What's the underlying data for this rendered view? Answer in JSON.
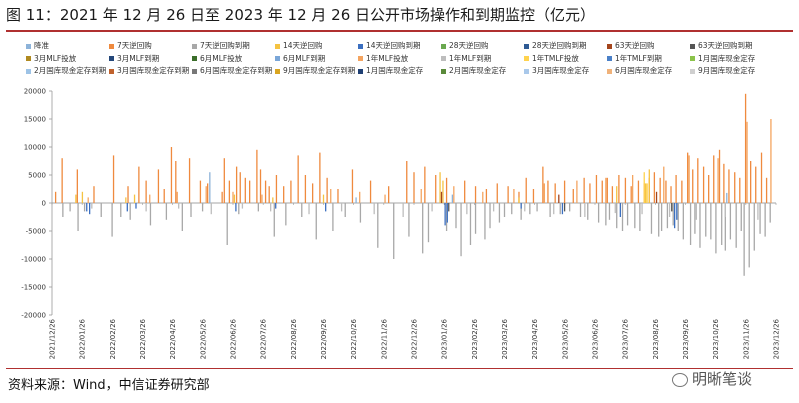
{
  "figure": {
    "title": "图 11：2021 年 12 月 26 日至 2023 年 12 月 26 日公开市场操作和到期监控（亿元）",
    "source": "资料来源：Wind，中信证券研究部",
    "watermark": "明晰笔谈"
  },
  "chart_data": {
    "type": "bar",
    "stacked": true,
    "ylim": [
      -20000,
      20000
    ],
    "yticks": [
      -20000,
      -15000,
      -10000,
      -5000,
      0,
      5000,
      10000,
      15000,
      20000
    ],
    "x_tick_labels": [
      "2021/12/26",
      "2022/01/26",
      "2022/02/26",
      "2022/03/26",
      "2022/04/26",
      "2022/05/26",
      "2022/06/26",
      "2022/07/26",
      "2022/08/26",
      "2022/09/26",
      "2022/10/26",
      "2022/11/26",
      "2022/12/26",
      "2023/01/26",
      "2023/02/26",
      "2023/03/26",
      "2023/04/26",
      "2023/05/26",
      "2023/06/26",
      "2023/07/26",
      "2023/08/26",
      "2023/09/26",
      "2023/10/26",
      "2023/11/26",
      "2023/12/26"
    ],
    "legend_position": "top",
    "grid": false,
    "legend": [
      {
        "name": "降准",
        "color": "#8db3d9"
      },
      {
        "name": "7天逆回购",
        "color": "#ef8a3e"
      },
      {
        "name": "7天逆回购到期",
        "color": "#a8a8a8"
      },
      {
        "name": "14天逆回购",
        "color": "#f5c342"
      },
      {
        "name": "14天逆回购到期",
        "color": "#3b6fc0"
      },
      {
        "name": "28天逆回购",
        "color": "#6aa84f"
      },
      {
        "name": "28天逆回购到期",
        "color": "#2e5a94"
      },
      {
        "name": "63天逆回购",
        "color": "#a4451c"
      },
      {
        "name": "63天逆回购到期",
        "color": "#555555"
      },
      {
        "name": "3月MLF投放",
        "color": "#b08a20"
      },
      {
        "name": "3月MLF到期",
        "color": "#24477a"
      },
      {
        "name": "6月MLF投放",
        "color": "#3b6e2a"
      },
      {
        "name": "6月MLF到期",
        "color": "#7aa6d8"
      },
      {
        "name": "1年MLF投放",
        "color": "#f4a460"
      },
      {
        "name": "1年MLF到期",
        "color": "#bdbdbd"
      },
      {
        "name": "1年TMLF投放",
        "color": "#ffd34e"
      },
      {
        "name": "1年TMLF到期",
        "color": "#4a80c8"
      },
      {
        "name": "1月国库现金定存",
        "color": "#8bc34a"
      },
      {
        "name": "2月国库现金定存到期",
        "color": "#9dc3e6"
      },
      {
        "name": "3月国库现金定存到期",
        "color": "#c0622d"
      },
      {
        "name": "6月国库现金定存到期",
        "color": "#777777"
      },
      {
        "name": "9月国库现金定存到期",
        "color": "#d9a520"
      },
      {
        "name": "1月国库现金定存",
        "color": "#1f3f73"
      },
      {
        "name": "2月国库现金定存",
        "color": "#5a8a3a"
      },
      {
        "name": "3月国库现金定存",
        "color": "#a9c8ea"
      },
      {
        "name": "6月国库现金定存",
        "color": "#f0b27a"
      },
      {
        "name": "9月国库现金定存",
        "color": "#cfcfcf"
      }
    ],
    "series": [
      {
        "name": "7天逆回购",
        "color": "#ef8a3e",
        "sign": 1,
        "points": [
          [
            0.5,
            2000
          ],
          [
            1.4,
            8000
          ],
          [
            3.5,
            6000
          ],
          [
            5.8,
            3000
          ],
          [
            8.5,
            8500
          ],
          [
            10.5,
            3000
          ],
          [
            12.0,
            6500
          ],
          [
            13.0,
            4000
          ],
          [
            14.7,
            6000
          ],
          [
            15.5,
            2500
          ],
          [
            16.5,
            10000
          ],
          [
            17.1,
            7500
          ],
          [
            19.0,
            8000
          ],
          [
            20.5,
            4000
          ],
          [
            21.5,
            3500
          ],
          [
            23.5,
            2000
          ],
          [
            23.8,
            8000
          ],
          [
            24.5,
            4000
          ],
          [
            25.5,
            6500
          ],
          [
            26.0,
            5500
          ],
          [
            26.7,
            4500
          ],
          [
            27.3,
            4000
          ],
          [
            28.3,
            9500
          ],
          [
            28.8,
            6000
          ],
          [
            29.5,
            4000
          ],
          [
            30.0,
            3000
          ],
          [
            31.0,
            5000
          ],
          [
            32.0,
            3000
          ],
          [
            33.0,
            4000
          ],
          [
            34.0,
            8500
          ],
          [
            35.0,
            5000
          ],
          [
            36.0,
            3500
          ],
          [
            37.0,
            9000
          ],
          [
            38.0,
            4500
          ],
          [
            39.5,
            2500
          ],
          [
            41.5,
            6000
          ],
          [
            44.0,
            4000
          ],
          [
            46.5,
            3000
          ],
          [
            49.0,
            7500
          ],
          [
            50.0,
            5500
          ],
          [
            51.5,
            6500
          ],
          [
            53.0,
            5000
          ],
          [
            54.5,
            4500
          ],
          [
            57.0,
            4000
          ],
          [
            58.5,
            3000
          ],
          [
            60.0,
            2500
          ],
          [
            61.5,
            3500
          ],
          [
            63.0,
            3000
          ],
          [
            64.5,
            2000
          ],
          [
            65.5,
            4500
          ],
          [
            66.5,
            2500
          ],
          [
            67.8,
            6500
          ],
          [
            68.5,
            4000
          ],
          [
            69.5,
            3500
          ],
          [
            70.8,
            4000
          ],
          [
            72.0,
            2500
          ],
          [
            73.5,
            4500
          ],
          [
            74.3,
            3500
          ],
          [
            75.2,
            5000
          ],
          [
            76.0,
            4000
          ],
          [
            76.7,
            4500
          ],
          [
            77.4,
            3000
          ],
          [
            78.3,
            5000
          ],
          [
            79.2,
            4500
          ],
          [
            80.0,
            3000
          ],
          [
            81.0,
            4000
          ],
          [
            81.8,
            3500
          ],
          [
            82.5,
            4500
          ],
          [
            83.2,
            5500
          ],
          [
            84.0,
            4500
          ],
          [
            84.8,
            4000
          ],
          [
            85.5,
            3000
          ],
          [
            86.2,
            5000
          ],
          [
            87.0,
            4000
          ],
          [
            87.8,
            9000
          ],
          [
            88.5,
            6000
          ],
          [
            89.2,
            8000
          ],
          [
            90.0,
            6500
          ],
          [
            90.7,
            5000
          ],
          [
            91.4,
            8500
          ],
          [
            92.2,
            9500
          ],
          [
            92.8,
            7000
          ],
          [
            93.5,
            6000
          ],
          [
            94.3,
            5500
          ],
          [
            95.0,
            4500
          ],
          [
            95.8,
            19500
          ],
          [
            96.5,
            7500
          ],
          [
            97.2,
            6500
          ],
          [
            98.0,
            9000
          ],
          [
            98.7,
            4500
          ]
        ]
      },
      {
        "name": "1年MLF投放",
        "color": "#f4a460",
        "sign": 1,
        "points": [
          [
            5.0,
            1000
          ],
          [
            13.5,
            1500
          ],
          [
            17.3,
            2000
          ],
          [
            21.3,
            3000
          ],
          [
            25.0,
            2000
          ],
          [
            29.0,
            1500
          ],
          [
            38.5,
            2500
          ],
          [
            42.5,
            2000
          ],
          [
            46.0,
            1500
          ],
          [
            51.0,
            2500
          ],
          [
            55.5,
            3000
          ],
          [
            59.5,
            2000
          ],
          [
            63.8,
            2500
          ],
          [
            68.0,
            3500
          ],
          [
            72.5,
            4000
          ],
          [
            76.5,
            4500
          ],
          [
            80.2,
            5000
          ],
          [
            84.5,
            6500
          ],
          [
            88.0,
            8500
          ],
          [
            92.0,
            8000
          ],
          [
            96.0,
            14500
          ],
          [
            99.3,
            15000
          ]
        ]
      },
      {
        "name": "14天逆回购",
        "color": "#f5c342",
        "sign": 1,
        "points": [
          [
            3.3,
            1500
          ],
          [
            4.2,
            2000
          ],
          [
            10.2,
            1000
          ],
          [
            11.4,
            1500
          ],
          [
            25.2,
            1500
          ],
          [
            30.5,
            1000
          ],
          [
            37.5,
            1500
          ],
          [
            53.6,
            5500
          ],
          [
            54.0,
            4000
          ],
          [
            64.5,
            1000
          ],
          [
            78.0,
            3000
          ],
          [
            82.0,
            3500
          ],
          [
            82.5,
            6000
          ]
        ]
      },
      {
        "name": "63天逆回购",
        "color": "#a4451c",
        "sign": 1,
        "points": [
          [
            53.8,
            2000
          ],
          [
            70.0,
            1500
          ],
          [
            83.5,
            2000
          ]
        ]
      },
      {
        "name": "1年TMLF投放",
        "color": "#ffd34e",
        "sign": 1,
        "points": [
          [
            81.8,
            5500
          ],
          [
            82.2,
            3500
          ]
        ]
      },
      {
        "name": "降准",
        "color": "#8db3d9",
        "sign": 1,
        "points": [
          [
            21.8,
            5500
          ],
          [
            42.0,
            1000
          ],
          [
            55.3,
            1500
          ],
          [
            93.2,
            1800
          ]
        ]
      },
      {
        "name": "7天逆回购到期",
        "color": "#a8a8a8",
        "sign": -1,
        "points": [
          [
            1.5,
            -2500
          ],
          [
            2.5,
            -1500
          ],
          [
            3.6,
            -5000
          ],
          [
            4.5,
            -1500
          ],
          [
            6.8,
            -2500
          ],
          [
            8.3,
            -6000
          ],
          [
            9.5,
            -2500
          ],
          [
            10.8,
            -3000
          ],
          [
            13.6,
            -4000
          ],
          [
            15.8,
            -3000
          ],
          [
            18.0,
            -5000
          ],
          [
            19.2,
            -2500
          ],
          [
            20.8,
            -1500
          ],
          [
            24.2,
            -7500
          ],
          [
            25.8,
            -2000
          ],
          [
            28.5,
            -1500
          ],
          [
            30.7,
            -6000
          ],
          [
            32.3,
            -4000
          ],
          [
            34.5,
            -2500
          ],
          [
            36.5,
            -6500
          ],
          [
            38.8,
            -5000
          ],
          [
            40.5,
            -2500
          ],
          [
            42.6,
            -3500
          ],
          [
            45.0,
            -8000
          ],
          [
            47.2,
            -10000
          ],
          [
            49.3,
            -6000
          ],
          [
            51.2,
            -9000
          ],
          [
            52.0,
            -7000
          ],
          [
            54.5,
            -5000
          ],
          [
            55.8,
            -4500
          ],
          [
            56.5,
            -9500
          ],
          [
            57.8,
            -7500
          ],
          [
            58.5,
            -5500
          ],
          [
            59.8,
            -6500
          ],
          [
            60.5,
            -4500
          ],
          [
            61.8,
            -3500
          ],
          [
            62.5,
            -2500
          ],
          [
            63.5,
            -2000
          ],
          [
            64.8,
            -3000
          ],
          [
            66.0,
            -2000
          ],
          [
            67.0,
            -1500
          ],
          [
            68.8,
            -2500
          ],
          [
            70.2,
            -2000
          ],
          [
            71.5,
            -1500
          ],
          [
            73.0,
            -2500
          ],
          [
            74.0,
            -3000
          ],
          [
            75.5,
            -3500
          ],
          [
            76.5,
            -4000
          ],
          [
            77.0,
            -3000
          ],
          [
            78.0,
            -4500
          ],
          [
            78.8,
            -5000
          ],
          [
            79.5,
            -4000
          ],
          [
            80.5,
            -4500
          ],
          [
            81.2,
            -5000
          ],
          [
            82.8,
            -5500
          ],
          [
            83.8,
            -6000
          ],
          [
            84.2,
            -5000
          ],
          [
            85.0,
            -4500
          ],
          [
            85.8,
            -4000
          ],
          [
            86.5,
            -5000
          ],
          [
            87.2,
            -6500
          ],
          [
            88.2,
            -7500
          ],
          [
            88.8,
            -5500
          ],
          [
            89.5,
            -8000
          ],
          [
            90.3,
            -6000
          ],
          [
            91.0,
            -6500
          ],
          [
            91.7,
            -9000
          ],
          [
            92.5,
            -7500
          ],
          [
            93.0,
            -8500
          ],
          [
            93.7,
            -6500
          ],
          [
            94.5,
            -8000
          ],
          [
            95.2,
            -5000
          ],
          [
            95.6,
            -13000
          ],
          [
            96.3,
            -11500
          ],
          [
            97.0,
            -8500
          ],
          [
            97.8,
            -5500
          ],
          [
            98.5,
            -6000
          ],
          [
            99.2,
            -3500
          ]
        ]
      },
      {
        "name": "1年MLF到期",
        "color": "#bdbdbd",
        "sign": -1,
        "points": [
          [
            5.5,
            -1000
          ],
          [
            13.0,
            -1500
          ],
          [
            17.5,
            -1000
          ],
          [
            22.0,
            -2000
          ],
          [
            26.3,
            -1000
          ],
          [
            30.2,
            -1500
          ],
          [
            35.5,
            -2000
          ],
          [
            40.0,
            -1500
          ],
          [
            44.5,
            -2000
          ],
          [
            48.5,
            -2500
          ],
          [
            52.5,
            -1500
          ],
          [
            57.3,
            -2000
          ],
          [
            61.0,
            -1500
          ],
          [
            65.3,
            -1500
          ],
          [
            69.3,
            -2000
          ],
          [
            73.6,
            -2500
          ],
          [
            77.8,
            -1800
          ],
          [
            81.5,
            -2000
          ],
          [
            85.3,
            -2500
          ],
          [
            89.0,
            -3000
          ],
          [
            93.0,
            -2500
          ],
          [
            97.5,
            -3000
          ]
        ]
      },
      {
        "name": "14天逆回购到期",
        "color": "#3b6fc0",
        "sign": -1,
        "points": [
          [
            4.8,
            -1500
          ],
          [
            5.2,
            -2000
          ],
          [
            10.4,
            -1500
          ],
          [
            11.6,
            -1000
          ],
          [
            25.4,
            -1500
          ],
          [
            30.9,
            -1000
          ],
          [
            37.8,
            -1500
          ],
          [
            54.3,
            -4000
          ],
          [
            54.6,
            -3500
          ],
          [
            64.8,
            -1000
          ],
          [
            70.5,
            -2000
          ],
          [
            78.5,
            -2500
          ],
          [
            86.0,
            -4500
          ],
          [
            86.3,
            -3000
          ]
        ]
      },
      {
        "name": "63天逆回购到期",
        "color": "#555555",
        "sign": -1,
        "points": [
          [
            54.8,
            -1500
          ],
          [
            70.8,
            -1500
          ],
          [
            85.6,
            -1500
          ]
        ]
      }
    ]
  }
}
